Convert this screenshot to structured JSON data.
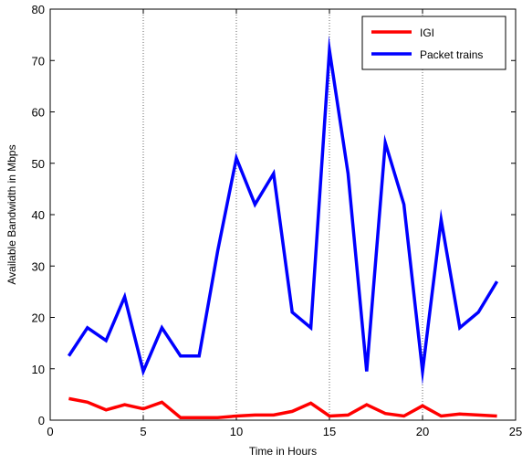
{
  "chart_data": {
    "type": "line",
    "xlabel": "Time in Hours",
    "ylabel": "Available Bandwidth in Mbps",
    "xlim": [
      0,
      25
    ],
    "ylim": [
      0,
      80
    ],
    "xticks": [
      0,
      5,
      10,
      15,
      20,
      25
    ],
    "yticks": [
      0,
      10,
      20,
      30,
      40,
      50,
      60,
      70,
      80
    ],
    "grid": "dotted at x = 5, 10, 15, 20",
    "legend_position": "top-right",
    "series": [
      {
        "name": "IGI",
        "color": "#ff0000",
        "x": [
          1,
          2,
          3,
          4,
          5,
          6,
          7,
          8,
          9,
          10,
          11,
          12,
          13,
          14,
          15,
          16,
          17,
          18,
          19,
          20,
          21,
          22,
          23,
          24
        ],
        "y": [
          4.2,
          3.5,
          2.0,
          3.0,
          2.2,
          3.5,
          0.5,
          0.5,
          0.5,
          0.8,
          1.0,
          1.0,
          1.7,
          3.3,
          0.8,
          1.0,
          3.0,
          1.3,
          0.8,
          2.8,
          0.8,
          1.2,
          1.0,
          0.8
        ]
      },
      {
        "name": "Packet trains",
        "color": "#0000ff",
        "x": [
          1,
          2,
          3,
          4,
          5,
          6,
          7,
          8,
          9,
          10,
          11,
          12,
          13,
          14,
          15,
          16,
          17,
          18,
          19,
          20,
          21,
          22,
          23,
          24
        ],
        "y": [
          12.5,
          18,
          15.5,
          24,
          9.5,
          18,
          12.5,
          12.5,
          33,
          51,
          42,
          48,
          21,
          18,
          72,
          48,
          9.5,
          54,
          42,
          9.5,
          39,
          18,
          21,
          27
        ]
      }
    ]
  }
}
